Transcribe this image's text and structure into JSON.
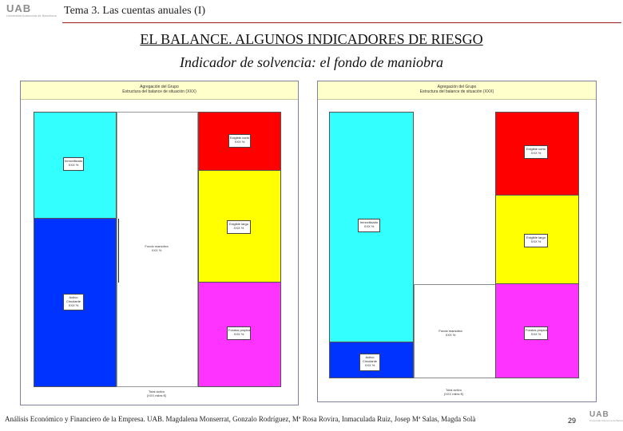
{
  "header": {
    "logo_text": "UAB",
    "logo_subtext": "Universitat Autònoma de Barcelona",
    "course_title": "Tema 3. Las cuentas anuales (I)"
  },
  "main_title": "EL BALANCE. ALGUNOS INDICADORES DE RIESGO",
  "subtitle": "Indicador de solvencia: el fondo de maniobra",
  "left_panel": {
    "header_line1": "Agregación del Grupo",
    "header_line2": "Estructura del balance de situación (XXX)",
    "labels": {
      "red_label_line1": "Exigible corto",
      "red_label_line2": "XXX %",
      "cyan_label_line1": "Inmovilizado",
      "cyan_label_line2": "XXX %",
      "yellow_label_line1": "Exigible largo",
      "yellow_label_line2": "XXX %",
      "middle_label_line1": "Fondo maniobra",
      "middle_label_line2": "XXX %",
      "blue_label_line1": "Activo",
      "blue_label_line2": "Circulante",
      "blue_label_line3": "XXX %",
      "magenta_label_line1": "Fondos propios",
      "magenta_label_line2": "XXX %"
    },
    "footer_line1": "Total activo",
    "footer_line2": "(XXX miles €)"
  },
  "right_panel": {
    "header_line1": "Agregación del Grupo",
    "header_line2": "Estructura del balance de situación (XXX)",
    "labels": {
      "red_label_line1": "Exigible corto",
      "red_label_line2": "XXX %",
      "cyan_label_line1": "Inmovilizado",
      "cyan_label_line2": "XXX %",
      "yellow_label_line1": "Exigible largo",
      "yellow_label_line2": "XXX %",
      "white_label_line1": "Fondo maniobra",
      "white_label_line2": "XXX %",
      "blue_label_line1": "Activo",
      "blue_label_line2": "Circulante",
      "blue_label_line3": "XXX %",
      "magenta_label_line1": "Fondos propios",
      "magenta_label_line2": "XXX %"
    },
    "footer_line1": "Total activo",
    "footer_line2": "(XXX miles €)"
  },
  "colors": {
    "cyan": "#33ffff",
    "blue": "#0033ff",
    "red": "#ff0000",
    "yellow": "#ffff00",
    "magenta": "#ff33ff",
    "panel_header": "#ffffcc",
    "rule": "#9b1c1c"
  },
  "footer": {
    "credits": "Análisis Económico y Financiero de la Empresa. UAB. Magdalena Monserrat, Gonzalo Rodríguez, Mª Rosa Rovira, Inmaculada Ruiz, Josep Mª Salas, Magda Solà",
    "page_number": "29",
    "logo_text": "UAB",
    "logo_subtext": "Universitat Autònoma de Barcelona"
  }
}
